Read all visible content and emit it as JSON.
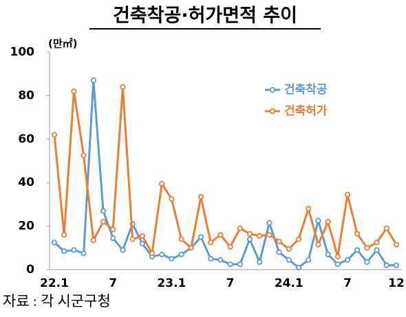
{
  "chart_data": {
    "type": "line",
    "title": "건축착공·허가면적 추이",
    "unit": "(만㎡)",
    "source": "자료 : 각 시군구청",
    "categories": [
      "22.1",
      null,
      null,
      null,
      null,
      null,
      "7",
      null,
      null,
      null,
      null,
      null,
      "23.1",
      null,
      null,
      null,
      null,
      null,
      "7",
      null,
      null,
      null,
      null,
      null,
      "24.1",
      null,
      null,
      null,
      null,
      null,
      "7",
      null,
      null,
      null,
      null,
      "12"
    ],
    "series": [
      {
        "name": "건축착공",
        "color": "#5b9bd5",
        "values": [
          12.5,
          8.5,
          9,
          7.5,
          87,
          27,
          14.5,
          9,
          21,
          12,
          6,
          7,
          5,
          7,
          10,
          15,
          5,
          4.5,
          2.5,
          2.5,
          14,
          3.5,
          21.5,
          8,
          4.5,
          1,
          4.5,
          22.5,
          7,
          2.5,
          4.5,
          9,
          3.5,
          9,
          2,
          2
        ]
      },
      {
        "name": "건축허가",
        "color": "#ed7d31",
        "values": [
          62,
          16,
          82,
          52.5,
          13.5,
          22,
          18.5,
          84,
          14,
          15.5,
          7.5,
          39.5,
          32.5,
          14,
          10,
          33.5,
          12.5,
          16,
          10.5,
          19,
          16.5,
          15.5,
          16,
          13,
          9.5,
          14,
          28,
          11.5,
          22,
          6,
          34.5,
          16.5,
          10,
          12.5,
          19,
          11.5
        ]
      }
    ],
    "ylim": [
      0,
      100
    ],
    "yticks": [
      0,
      20,
      40,
      60,
      80,
      100
    ],
    "grid": false,
    "legend": "upper right"
  }
}
